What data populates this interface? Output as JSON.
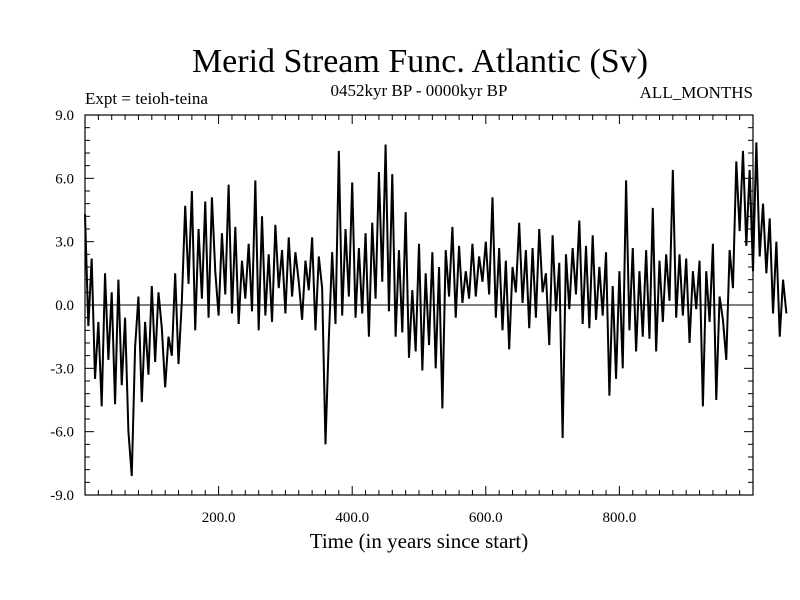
{
  "chart_data": {
    "type": "line",
    "title": "Merid Stream Func. Atlantic (Sv)",
    "subtitle_left": "Expt = teioh-teina",
    "subtitle_center": "0452kyr BP - 0000kyr BP",
    "subtitle_right": "ALL_MONTHS",
    "xlabel": "Time (in years since start)",
    "ylabel": "",
    "xlim": [
      0,
      1000
    ],
    "ylim": [
      -9,
      9
    ],
    "x_ticks": [
      200,
      400,
      600,
      800
    ],
    "x_tick_labels": [
      "200.0",
      "400.0",
      "600.0",
      "800.0"
    ],
    "y_ticks": [
      9,
      6,
      3,
      0,
      -3,
      -6,
      -9
    ],
    "y_tick_labels": [
      "9.0",
      "6.0",
      "3.0",
      "0.0",
      "-3.0",
      "-6.0",
      "-9.0"
    ],
    "zero_line": true,
    "series": [
      {
        "name": "Merid Stream Func. Atlantic",
        "color": "#000000",
        "x_start": 0,
        "x_step": 5,
        "values": [
          4.3,
          -1.0,
          2.2,
          -3.5,
          -0.8,
          -4.8,
          1.5,
          -2.6,
          0.6,
          -4.7,
          1.2,
          -3.8,
          -0.6,
          -6.0,
          -8.1,
          -2.0,
          0.4,
          -4.6,
          -0.8,
          -3.3,
          0.9,
          -2.7,
          0.6,
          -1.1,
          -3.9,
          -1.5,
          -2.4,
          1.5,
          -2.8,
          0.2,
          4.7,
          1.0,
          5.4,
          -1.2,
          3.6,
          0.3,
          4.9,
          -0.6,
          5.1,
          1.6,
          -0.5,
          3.4,
          0.5,
          5.7,
          -0.4,
          3.7,
          -0.9,
          2.1,
          0.3,
          2.9,
          -0.3,
          5.9,
          -1.2,
          4.2,
          -0.5,
          2.4,
          -0.8,
          3.8,
          0.8,
          2.6,
          -0.4,
          3.2,
          0.4,
          2.5,
          1.1,
          -0.7,
          2.1,
          0.7,
          3.2,
          -1.2,
          2.3,
          0.8,
          -6.6,
          -1.6,
          2.5,
          -0.9,
          7.3,
          -0.5,
          3.6,
          0.4,
          5.8,
          -0.6,
          2.7,
          -0.4,
          3.4,
          -1.5,
          3.9,
          0.3,
          6.3,
          1.1,
          7.6,
          -0.3,
          6.2,
          -1.5,
          2.6,
          -1.3,
          4.4,
          -2.5,
          0.7,
          -2.2,
          2.9,
          -3.1,
          1.5,
          -1.9,
          2.5,
          -3.0,
          1.8,
          -4.9,
          2.6,
          0.4,
          3.7,
          -0.6,
          2.8,
          0.1,
          1.6,
          0.3,
          2.9,
          0.4,
          2.3,
          1.1,
          3.0,
          0.5,
          5.1,
          -0.6,
          2.7,
          -1.2,
          2.1,
          -2.1,
          1.8,
          0.6,
          3.9,
          0.1,
          2.6,
          -1.1,
          2.7,
          -0.6,
          3.6,
          0.6,
          1.5,
          -1.9,
          3.3,
          -0.3,
          2.0,
          -6.3,
          2.4,
          -0.2,
          2.7,
          0.5,
          4.0,
          -0.9,
          2.8,
          -1.1,
          3.3,
          -0.7,
          1.8,
          -0.5,
          2.5,
          -4.3,
          0.9,
          -3.5,
          1.6,
          -3.0,
          5.9,
          -1.2,
          2.7,
          -2.2,
          1.6,
          -1.5,
          2.6,
          -1.6,
          4.6,
          -2.2,
          2.1,
          -0.8,
          2.4,
          0.2,
          6.4,
          -0.6,
          2.4,
          -0.5,
          2.2,
          -1.8,
          1.6,
          -0.2,
          2.1,
          -4.8,
          1.6,
          -0.8,
          2.9,
          -4.5,
          0.4,
          -0.7,
          -2.6,
          2.6,
          0.8,
          6.8,
          3.5,
          7.3,
          2.8,
          6.4,
          1.6,
          7.7,
          2.3,
          4.8,
          1.5,
          4.1,
          -0.4,
          3.0,
          -1.5,
          1.2,
          -0.4
        ]
      }
    ]
  }
}
